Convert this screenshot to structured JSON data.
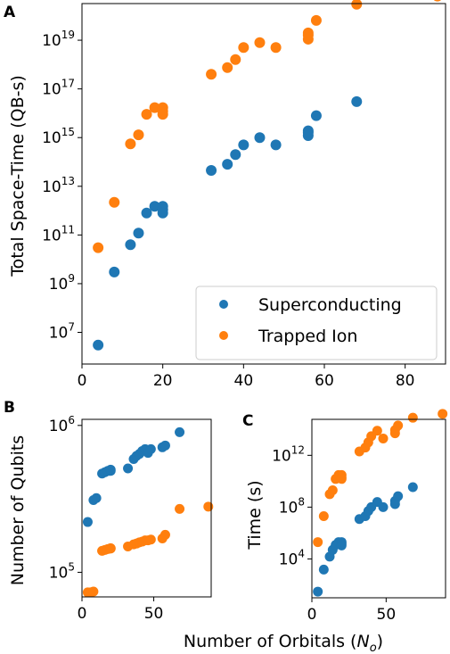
{
  "colors": {
    "superconducting": "#1f77b4",
    "trapped_ion": "#ff7f0e"
  },
  "chart_data": [
    {
      "panel_label": "A",
      "type": "scatter",
      "ylabel": "Total Space-Time (QB-s)",
      "xlabel": "",
      "yscale": "log",
      "xlim": [
        0,
        90
      ],
      "ylim": [
        500000.0,
        3.2e+20
      ],
      "xticks": [
        0,
        20,
        40,
        60,
        80
      ],
      "xtick_labels": [
        "0",
        "20",
        "40",
        "60",
        "80"
      ],
      "yticks": [
        10000000.0,
        1000000000.0,
        100000000000.0,
        10000000000000.0,
        1000000000000000.0,
        1e+17,
        1e+19
      ],
      "ytick_labels": [
        {
          "base": "10",
          "exp": "7"
        },
        {
          "base": "10",
          "exp": "9"
        },
        {
          "base": "10",
          "exp": "11"
        },
        {
          "base": "10",
          "exp": "13"
        },
        {
          "base": "10",
          "exp": "15"
        },
        {
          "base": "10",
          "exp": "17"
        },
        {
          "base": "10",
          "exp": "19"
        }
      ],
      "legend_location": "lower-right",
      "series": [
        {
          "name": "Superconducting",
          "color": "#1f77b4",
          "x": [
            4,
            8,
            12,
            14,
            16,
            18,
            20,
            20,
            20,
            32,
            36,
            38,
            40,
            44,
            48,
            56,
            56,
            56,
            58,
            68
          ],
          "y": [
            3000000.0,
            3000000000.0,
            40000000000.0,
            120000000000.0,
            800000000000.0,
            1500000000000.0,
            1500000000000.0,
            1100000000000.0,
            800000000000.0,
            45000000000000.0,
            80000000000000.0,
            200000000000000.0,
            500000000000000.0,
            1000000000000000.0,
            500000000000000.0,
            1200000000000000.0,
            1600000000000000.0,
            1900000000000000.0,
            8000000000000000.0,
            3e+16
          ]
        },
        {
          "name": "Trapped Ion",
          "color": "#ff7f0e",
          "x": [
            4,
            8,
            12,
            14,
            16,
            18,
            20,
            20,
            20,
            32,
            36,
            38,
            40,
            44,
            48,
            56,
            56,
            56,
            58,
            68,
            88
          ],
          "y": [
            30000000000.0,
            2200000000000.0,
            550000000000000.0,
            1300000000000000.0,
            9000000000000000.0,
            1.7e+16,
            1.7e+16,
            1.2e+16,
            9000000000000000.0,
            4e+17,
            7.5e+17,
            1.6e+18,
            5e+18,
            8e+18,
            5e+18,
            1.1e+19,
            1.6e+19,
            2e+19,
            6.5e+19,
            3e+20,
            6.5e+20
          ]
        }
      ]
    },
    {
      "panel_label": "B",
      "type": "scatter",
      "ylabel": "Number of Qubits",
      "xlabel": "",
      "yscale": "log",
      "xlim": [
        0,
        90
      ],
      "ylim": [
        68000.0,
        1100000.0
      ],
      "xticks": [
        0,
        50
      ],
      "xtick_labels": [
        "0",
        "50"
      ],
      "yticks": [
        100000.0,
        1000000.0
      ],
      "ytick_labels": [
        {
          "base": "10",
          "exp": "5"
        },
        {
          "base": "10",
          "exp": "6"
        }
      ],
      "series": [
        {
          "name": "Superconducting",
          "color": "#1f77b4",
          "x": [
            4,
            8,
            10,
            14,
            16,
            18,
            20,
            20,
            32,
            36,
            38,
            40,
            42,
            44,
            46,
            48,
            56,
            58,
            68
          ],
          "y": [
            220000.0,
            310000.0,
            320000.0,
            470000.0,
            480000.0,
            490000.0,
            490000.0,
            500000.0,
            510000.0,
            590000.0,
            620000.0,
            640000.0,
            670000.0,
            690000.0,
            650000.0,
            690000.0,
            710000.0,
            730000.0,
            900000.0
          ]
        },
        {
          "name": "Trapped Ion",
          "color": "#ff7f0e",
          "x": [
            4,
            6,
            8,
            14,
            16,
            18,
            20,
            20,
            32,
            36,
            38,
            40,
            42,
            44,
            46,
            48,
            56,
            58,
            68,
            88
          ],
          "y": [
            73000.0,
            73000.0,
            74000.0,
            140000.0,
            142000.0,
            144000.0,
            145000.0,
            146000.0,
            150000.0,
            155000.0,
            157000.0,
            160000.0,
            162000.0,
            165000.0,
            165000.0,
            167000.0,
            170000.0,
            180000.0,
            270000.0,
            280000.0
          ]
        }
      ]
    },
    {
      "panel_label": "C",
      "type": "scatter",
      "ylabel": "Time (s)",
      "xlabel": "",
      "yscale": "log",
      "xlim": [
        0,
        90
      ],
      "ylim": [
        10.0,
        600000000000000.0
      ],
      "xticks": [
        0,
        50
      ],
      "xtick_labels": [
        "0",
        "50"
      ],
      "yticks": [
        10000.0,
        100000000.0,
        1000000000000.0
      ],
      "ytick_labels": [
        {
          "base": "10",
          "exp": "4"
        },
        {
          "base": "10",
          "exp": "8"
        },
        {
          "base": "10",
          "exp": "12"
        }
      ],
      "series": [
        {
          "name": "Superconducting",
          "color": "#1f77b4",
          "x": [
            4,
            8,
            12,
            14,
            16,
            18,
            20,
            20,
            20,
            32,
            36,
            38,
            40,
            44,
            48,
            56,
            56,
            58,
            68
          ],
          "y": [
            30,
            1500,
            15000,
            50000,
            120000.0,
            200000.0,
            200000.0,
            150000.0,
            110000.0,
            12000000.0,
            20000000.0,
            50000000.0,
            100000000.0,
            250000000.0,
            100000000.0,
            170000000.0,
            300000000.0,
            700000000.0,
            3500000000.0
          ]
        },
        {
          "name": "Trapped Ion",
          "color": "#ff7f0e",
          "x": [
            4,
            8,
            12,
            14,
            16,
            18,
            20,
            20,
            20,
            32,
            36,
            38,
            40,
            44,
            48,
            56,
            56,
            58,
            68,
            88
          ],
          "y": [
            200000.0,
            20000000.0,
            1000000000.0,
            2000000000.0,
            15000000000.0,
            30000000000.0,
            30000000000.0,
            20000000000.0,
            15000000000.0,
            2000000000000.0,
            4000000000000.0,
            10000000000000.0,
            30000000000000.0,
            80000000000000.0,
            20000000000000.0,
            50000000000000.0,
            90000000000000.0,
            200000000000000.0,
            800000000000000.0,
            1600000000000000.0
          ]
        }
      ]
    }
  ],
  "shared_xlabel": {
    "prefix": "Number of Orbitals (",
    "var": "N",
    "sub": "o",
    "suffix": ")"
  }
}
